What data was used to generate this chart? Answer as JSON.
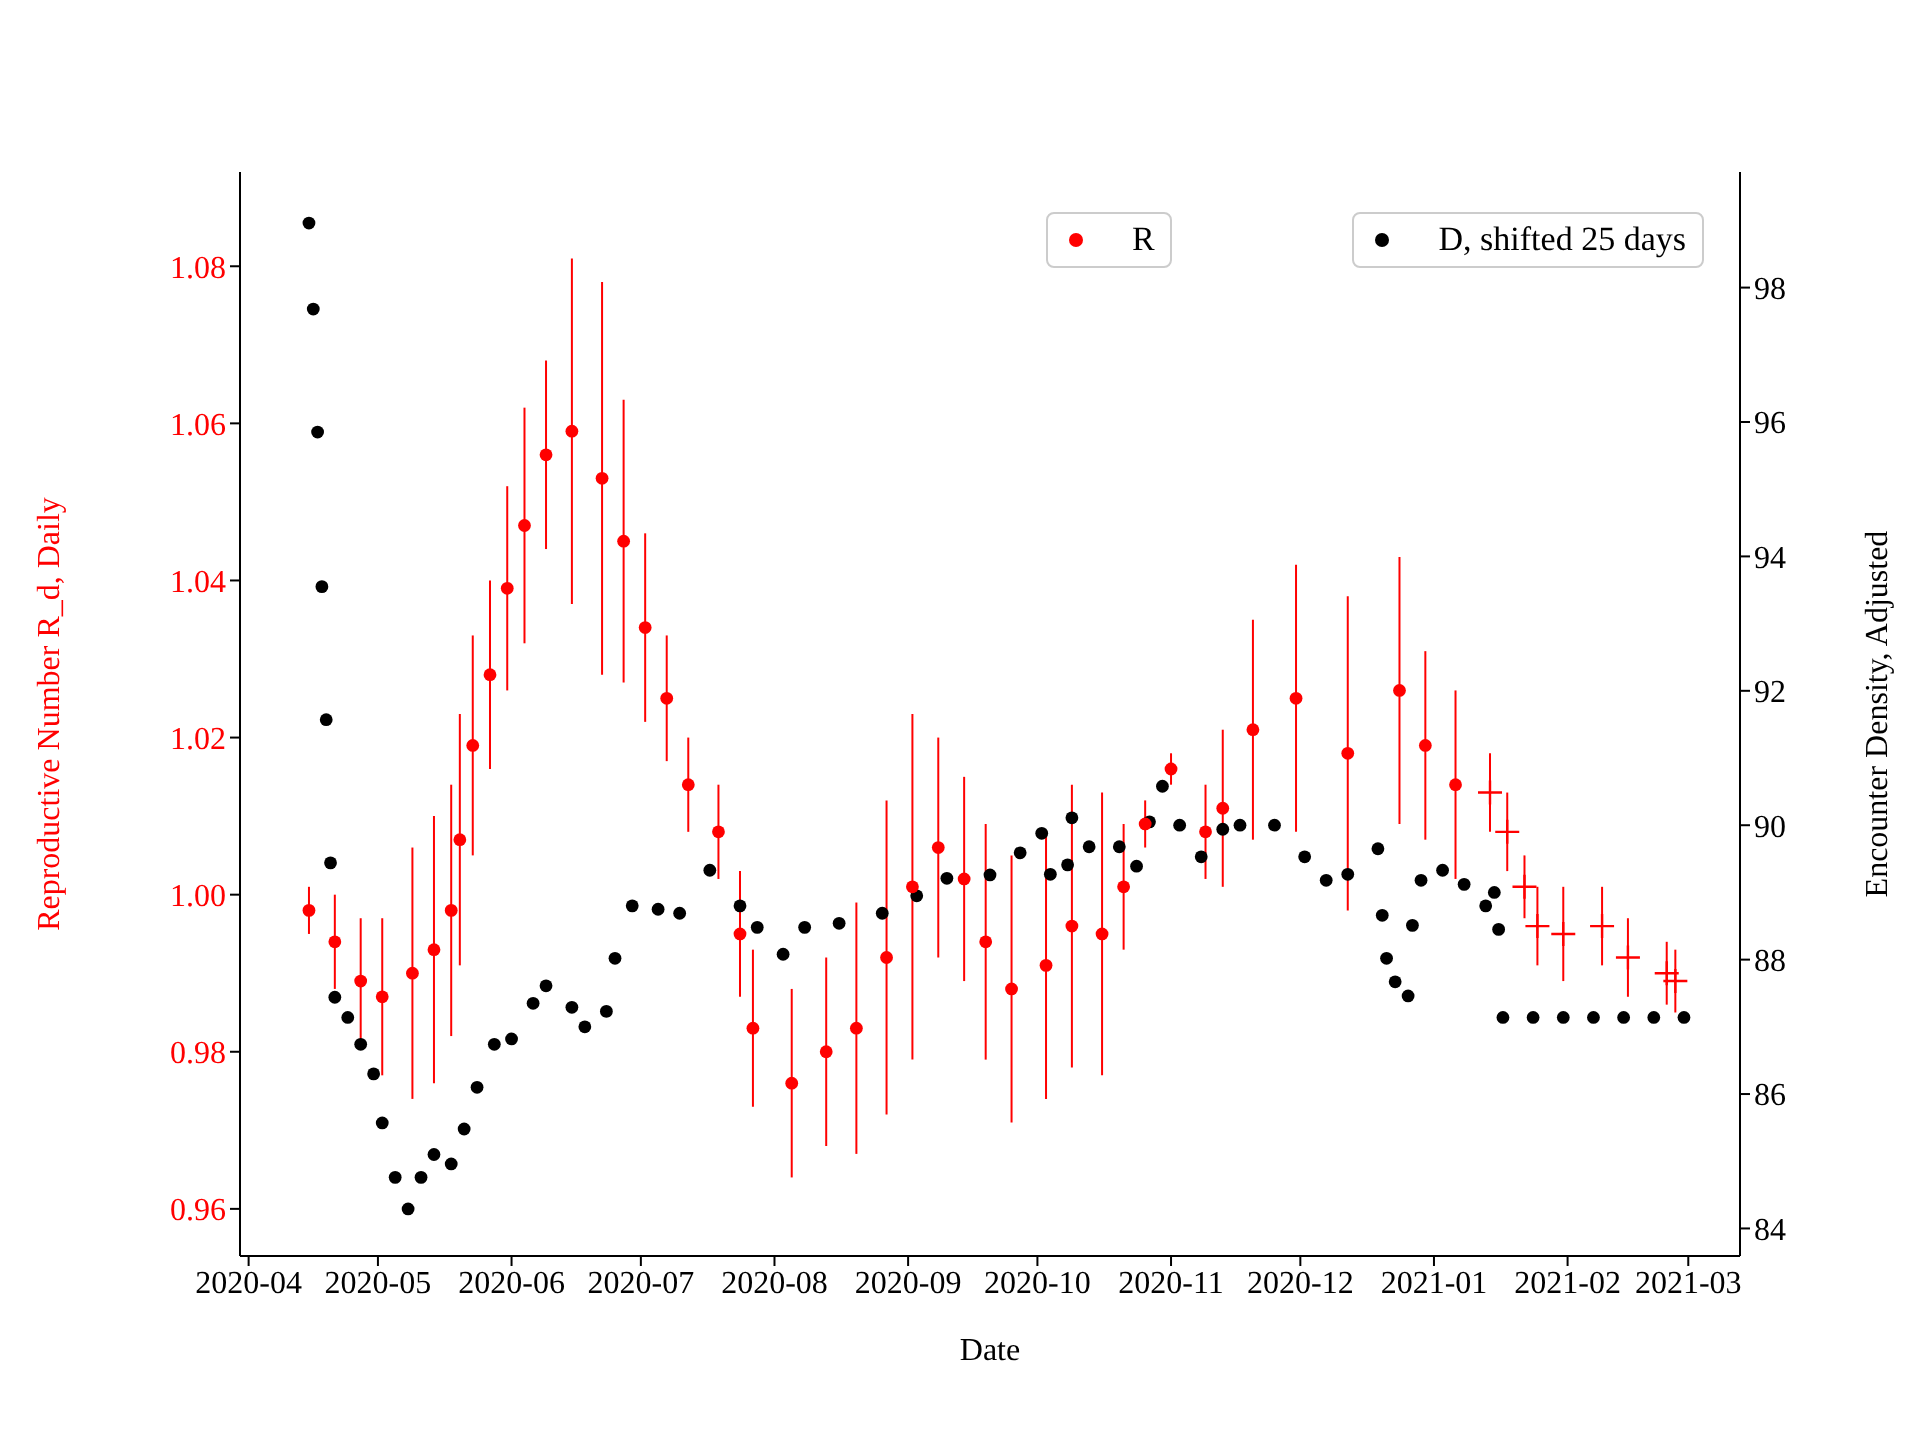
{
  "chart_data": {
    "type": "scatter",
    "xlabel": "Date",
    "ylabel": "Reproductive Number R_d, Daily",
    "y2label": "Encounter Density, Adjusted",
    "marker": "circle",
    "legend": "top right",
    "xlim": [
      "2020-03-30",
      "2021-03-13"
    ],
    "xticks": [
      "2020-04",
      "2020-05",
      "2020-06",
      "2020-07",
      "2020-08",
      "2020-09",
      "2020-10",
      "2020-11",
      "2020-12",
      "2021-01",
      "2021-02",
      "2021-03"
    ],
    "ylim": [
      0.954,
      1.092
    ],
    "yticks": [
      0.96,
      0.98,
      {
        "value": 1,
        "label": "1.00"
      },
      1.02,
      1.04,
      1.06,
      1.08
    ],
    "y2lim": [
      83.59,
      99.72
    ],
    "y2ticks": [
      84,
      86,
      88,
      90,
      92,
      94,
      96,
      98
    ],
    "series": [
      {
        "name": "R",
        "color": "#ff0000",
        "axis": "y",
        "x": [
          "2020-04-15",
          "2020-04-21",
          "2020-04-27",
          "2020-05-02",
          "2020-05-09",
          "2020-05-14",
          "2020-05-18",
          "2020-05-20",
          "2020-05-23",
          "2020-05-27",
          "2020-05-31",
          "2020-06-04",
          "2020-06-09",
          "2020-06-15",
          "2020-06-22",
          "2020-06-27",
          "2020-07-02",
          "2020-07-07",
          "2020-07-12",
          "2020-07-19",
          "2020-07-24",
          "2020-07-27",
          "2020-08-05",
          "2020-08-13",
          "2020-08-20",
          "2020-08-27",
          "2020-09-02",
          "2020-09-08",
          "2020-09-14",
          "2020-09-19",
          "2020-09-25",
          "2020-10-03",
          "2020-10-09",
          "2020-10-16",
          "2020-10-21",
          "2020-10-26",
          "2020-11-01",
          "2020-11-09",
          "2020-11-13",
          "2020-11-20",
          "2020-11-30",
          "2020-12-12",
          "2020-12-24",
          "2020-12-30",
          "2021-01-06"
        ],
        "values": [
          0.998,
          0.994,
          0.989,
          0.987,
          0.99,
          0.993,
          0.998,
          1.007,
          1.019,
          1.028,
          1.039,
          1.047,
          1.056,
          1.059,
          1.053,
          1.045,
          1.034,
          1.025,
          1.014,
          1.008,
          0.995,
          0.983,
          0.976,
          0.98,
          0.983,
          0.992,
          1.001,
          1.006,
          1.002,
          0.994,
          0.988,
          0.991,
          0.996,
          0.995,
          1.001,
          1.009,
          1.016,
          1.008,
          1.011,
          1.021,
          1.025,
          1.018,
          1.026,
          1.019,
          1.014
        ],
        "errors": [
          0.003,
          0.006,
          0.008,
          0.01,
          0.016,
          0.017,
          0.016,
          0.016,
          0.014,
          0.012,
          0.013,
          0.015,
          0.012,
          0.022,
          0.025,
          0.018,
          0.012,
          0.008,
          0.006,
          0.006,
          0.008,
          0.01,
          0.012,
          0.012,
          0.016,
          0.02,
          0.022,
          0.014,
          0.013,
          0.015,
          0.017,
          0.017,
          0.018,
          0.018,
          0.008,
          0.003,
          0.002,
          0.006,
          0.01,
          0.014,
          0.017,
          0.02,
          0.017,
          0.012,
          0.012
        ]
      },
      {
        "type": "scatter",
        "marker": "cross",
        "color": "#ff0000",
        "axis": "y",
        "x": [
          "2021-01-14",
          "2021-01-18",
          "2021-01-22",
          "2021-01-25",
          "2021-01-31",
          "2021-02-09",
          "2021-02-15",
          "2021-02-24",
          "2021-02-26"
        ],
        "values": [
          1.013,
          1.008,
          1.001,
          0.996,
          0.995,
          0.996,
          0.992,
          0.99,
          0.989
        ],
        "errors": [
          0.005,
          0.005,
          0.004,
          0.005,
          0.006,
          0.005,
          0.005,
          0.004,
          0.004
        ]
      },
      {
        "name": "D, shifted 25 days",
        "color": "#000000",
        "axis": "y2",
        "x": [
          "2020-04-15",
          "2020-04-16",
          "2020-04-17",
          "2020-04-18",
          "2020-04-19",
          "2020-04-20",
          "2020-04-21",
          "2020-04-24",
          "2020-04-27",
          "2020-04-30",
          "2020-05-02",
          "2020-05-05",
          "2020-05-08",
          "2020-05-11",
          "2020-05-14",
          "2020-05-18",
          "2020-05-21",
          "2020-05-24",
          "2020-05-28",
          "2020-06-01",
          "2020-06-06",
          "2020-06-09",
          "2020-06-15",
          "2020-06-18",
          "2020-06-23",
          "2020-06-25",
          "2020-06-29",
          "2020-07-05",
          "2020-07-10",
          "2020-07-17",
          "2020-07-24",
          "2020-07-28",
          "2020-08-03",
          "2020-08-08",
          "2020-08-16",
          "2020-08-26",
          "2020-09-03",
          "2020-09-10",
          "2020-09-20",
          "2020-09-27",
          "2020-10-02",
          "2020-10-04",
          "2020-10-08",
          "2020-10-09",
          "2020-10-13",
          "2020-10-20",
          "2020-10-24",
          "2020-10-27",
          "2020-10-30",
          "2020-11-03",
          "2020-11-08",
          "2020-11-13",
          "2020-11-17",
          "2020-11-25",
          "2020-12-02",
          "2020-12-07",
          "2020-12-12",
          "2020-12-19",
          "2020-12-20",
          "2020-12-21",
          "2020-12-23",
          "2020-12-26",
          "2020-12-27",
          "2020-12-29",
          "2021-01-03",
          "2021-01-08",
          "2021-01-13",
          "2021-01-15",
          "2021-01-16",
          "2021-01-17",
          "2021-01-24",
          "2021-01-31",
          "2021-02-07",
          "2021-02-14",
          "2021-02-21",
          "2021-02-28"
        ],
        "values": [
          98.96,
          97.68,
          95.85,
          93.55,
          91.57,
          89.44,
          87.44,
          87.14,
          86.74,
          86.3,
          85.57,
          84.76,
          84.29,
          84.76,
          85.1,
          84.96,
          85.48,
          86.1,
          86.74,
          86.82,
          87.35,
          87.61,
          87.29,
          87.0,
          87.23,
          88.02,
          88.8,
          88.75,
          88.69,
          89.33,
          88.8,
          88.48,
          88.08,
          88.48,
          88.54,
          88.69,
          88.95,
          89.21,
          89.26,
          89.59,
          89.88,
          89.27,
          89.41,
          90.11,
          89.68,
          89.68,
          89.39,
          90.05,
          90.58,
          90.0,
          89.53,
          89.94,
          90.0,
          90.0,
          89.53,
          89.18,
          89.27,
          89.65,
          88.66,
          88.02,
          87.67,
          87.46,
          88.51,
          89.18,
          89.33,
          89.12,
          88.8,
          89.0,
          88.45,
          87.14,
          87.14,
          87.14,
          87.14,
          87.14,
          87.14,
          87.14
        ]
      }
    ]
  }
}
